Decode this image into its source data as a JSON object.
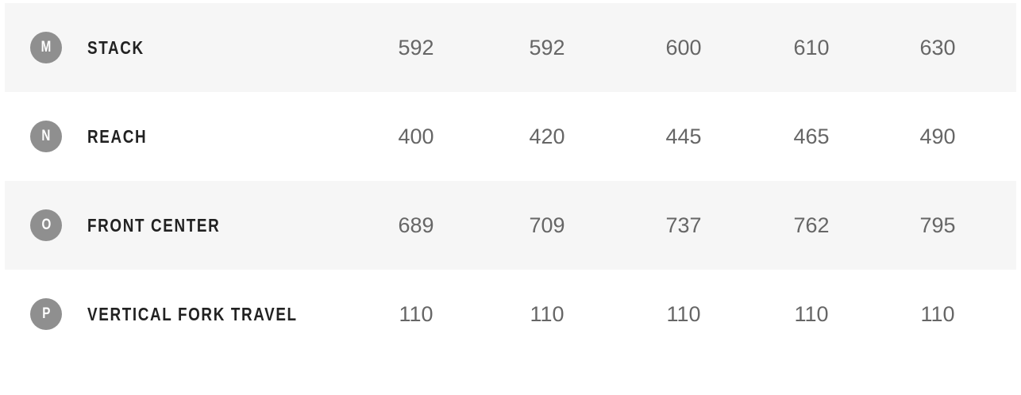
{
  "colors": {
    "shaded_row": "#f6f6f6",
    "badge": "#8f8f8f",
    "label": "#222222",
    "value": "#666666"
  },
  "rows": [
    {
      "letter": "M",
      "label": "STACK",
      "values": [
        "592",
        "592",
        "600",
        "610",
        "630"
      ]
    },
    {
      "letter": "N",
      "label": "REACH",
      "values": [
        "400",
        "420",
        "445",
        "465",
        "490"
      ]
    },
    {
      "letter": "O",
      "label": "FRONT CENTER",
      "values": [
        "689",
        "709",
        "737",
        "762",
        "795"
      ]
    },
    {
      "letter": "P",
      "label": "VERTICAL FORK TRAVEL",
      "values": [
        "110",
        "110",
        "110",
        "110",
        "110"
      ]
    }
  ]
}
